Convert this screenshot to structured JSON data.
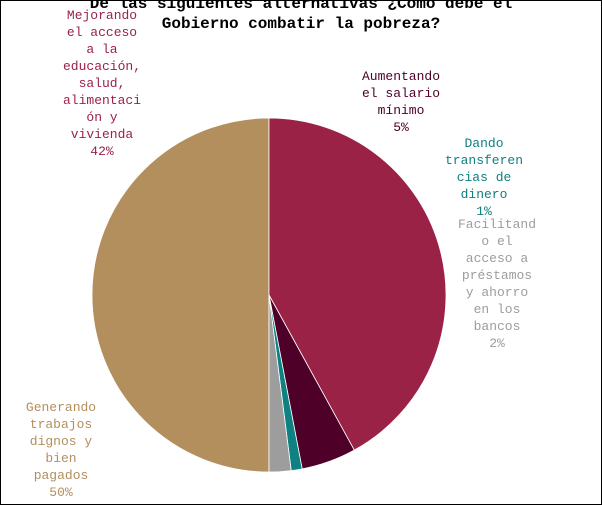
{
  "chart_data": {
    "type": "pie",
    "title_lines": [
      "De las siguientes alternativas ¿Cómo debe el",
      "Gobierno combatir la pobreza?"
    ],
    "slices": [
      {
        "name": "Generando trabajos dignos y bien pagados",
        "value": 50,
        "label_lines": [
          "Generando",
          "trabajos",
          "dignos y",
          "bien",
          "pagados",
          "50%"
        ],
        "color": "#b38f5d"
      },
      {
        "name": "Mejorando el acceso a la educación, salud, alimentación y vivienda",
        "value": 42,
        "label_lines": [
          "Mejorando",
          "el acceso",
          "a la",
          "educación,",
          "salud,",
          "alimentaci",
          "ón y",
          "vivienda",
          "42%"
        ],
        "color": "#9b2247"
      },
      {
        "name": "Aumentando el salario mínimo",
        "value": 5,
        "label_lines": [
          "Aumentando",
          "el salario",
          "mínimo",
          "5%"
        ],
        "color": "#4f0028"
      },
      {
        "name": "Dando transferencias de dinero",
        "value": 1,
        "label_lines": [
          "Dando",
          "transferen",
          "cias de",
          "dinero",
          "1%"
        ],
        "color": "#0f8182"
      },
      {
        "name": "Facilitando el acceso a préstamos y ahorro en los bancos",
        "value": 2,
        "label_lines": [
          "Facilitand",
          "o el",
          "acceso a",
          "préstamos",
          "y ahorro",
          "en los",
          "bancos",
          "2%"
        ],
        "color": "#9d9d9d"
      }
    ]
  }
}
